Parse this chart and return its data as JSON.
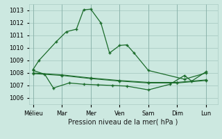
{
  "background_color": "#cce8e0",
  "grid_color": "#aaccc4",
  "line_color": "#1a6b2a",
  "title": "Pression niveau de la mer( hPa )",
  "x_labels": [
    "Mélieu",
    "Mar",
    "Mer",
    "Ven",
    "Sam",
    "Dim",
    "Lun"
  ],
  "ylim": [
    1005.5,
    1013.5
  ],
  "yticks": [
    1006,
    1007,
    1008,
    1009,
    1010,
    1011,
    1012,
    1013
  ],
  "series0_x": [
    0,
    0.4,
    1.6,
    2.3,
    3.0,
    3.5,
    4.0,
    4.7,
    5.3,
    6.0,
    6.5,
    7.0,
    8.0,
    10.5,
    12.0
  ],
  "series0_y": [
    1008.3,
    1009.0,
    1010.5,
    1011.3,
    1011.5,
    1013.05,
    1013.1,
    1012.0,
    1009.6,
    1010.2,
    1010.25,
    1009.6,
    1008.2,
    1007.5,
    1008.0
  ],
  "series1_x": [
    0,
    2,
    4,
    6,
    8,
    10,
    12
  ],
  "series1_y": [
    1007.95,
    1007.8,
    1007.55,
    1007.35,
    1007.2,
    1007.2,
    1007.4
  ],
  "series2_x": [
    0,
    2,
    4,
    6,
    8,
    10,
    12
  ],
  "series2_y": [
    1008.0,
    1007.85,
    1007.6,
    1007.4,
    1007.25,
    1007.25,
    1007.45
  ],
  "series3_x": [
    0.0,
    0.8,
    1.4,
    2.5,
    3.5,
    4.5,
    5.5,
    6.5,
    8.0,
    9.5,
    10.5,
    11.0,
    12.0
  ],
  "series3_y": [
    1008.2,
    1007.9,
    1006.8,
    1007.2,
    1007.1,
    1007.05,
    1007.0,
    1006.95,
    1006.65,
    1007.1,
    1007.8,
    1007.35,
    1008.1
  ],
  "x_tick_pos": [
    0,
    2,
    4,
    6,
    8,
    10,
    12
  ],
  "xlim": [
    -0.3,
    12.8
  ]
}
